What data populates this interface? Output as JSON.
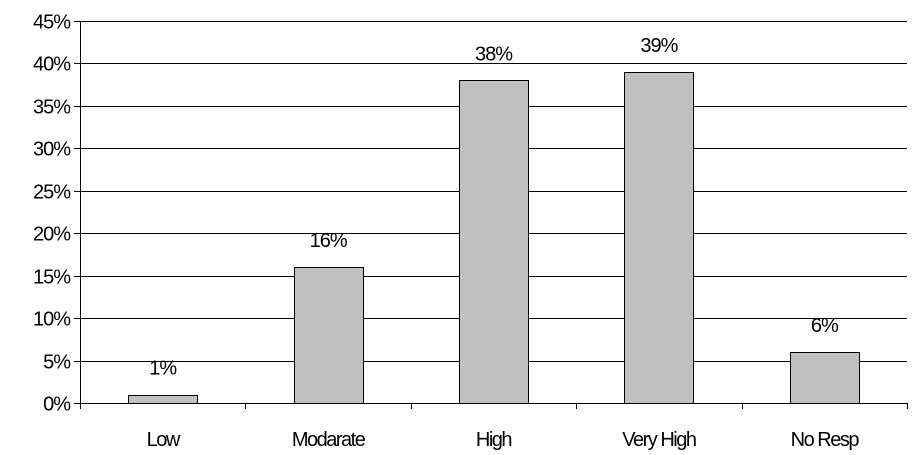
{
  "chart_data": {
    "type": "bar",
    "title": "",
    "xlabel": "",
    "ylabel": "",
    "categories": [
      "Low",
      "Modarate",
      "High",
      "Very High",
      "No Resp"
    ],
    "values": [
      1,
      16,
      38,
      39,
      6
    ],
    "data_labels": [
      "1%",
      "16%",
      "38%",
      "39%",
      "6%"
    ],
    "ylim": [
      0,
      45
    ],
    "y_ticks": [
      0,
      5,
      10,
      15,
      20,
      25,
      30,
      35,
      40,
      45
    ],
    "y_tick_labels": [
      "0%",
      "5%",
      "10%",
      "15%",
      "20%",
      "25%",
      "30%",
      "35%",
      "40%",
      "45%"
    ],
    "grid": true,
    "legend": "none",
    "colors": {
      "bar_fill": "#c0c0c0",
      "bar_stroke": "#000000",
      "grid": "#000000",
      "axis": "#000000"
    }
  }
}
